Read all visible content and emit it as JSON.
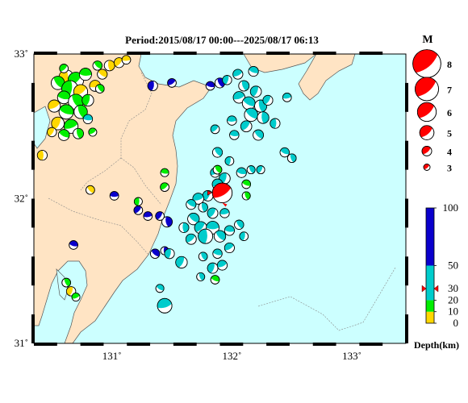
{
  "title": "Period:2015/08/17 00:00---2025/08/17 06:13",
  "map": {
    "lon_range": [
      130.35,
      133.45
    ],
    "lat_range": [
      31.0,
      33.0
    ],
    "lat_ticks": [
      {
        "v": 33,
        "label": "33˚"
      },
      {
        "v": 32,
        "label": "32˚"
      },
      {
        "v": 31,
        "label": "31˚"
      }
    ],
    "lon_ticks": [
      {
        "v": 131,
        "label": "131˚"
      },
      {
        "v": 132,
        "label": "132˚"
      },
      {
        "v": 133,
        "label": "133˚"
      }
    ],
    "colors": {
      "sea": "#ccffff",
      "land": "#ffe4c4",
      "frame": "#000000",
      "highlight": "#ff0000"
    }
  },
  "magnitude_legend": {
    "title": "M",
    "items": [
      {
        "m": 8,
        "label": "8"
      },
      {
        "m": 7,
        "label": "7"
      },
      {
        "m": 6,
        "label": "6"
      },
      {
        "m": 5,
        "label": "5"
      },
      {
        "m": 4,
        "label": "4"
      },
      {
        "m": 3,
        "label": "3"
      }
    ]
  },
  "depth_legend": {
    "title": "Depth(km)",
    "bands": [
      {
        "from": 0,
        "to": 10,
        "color": "#ffd700"
      },
      {
        "from": 10,
        "to": 20,
        "color": "#00ee00"
      },
      {
        "from": 20,
        "to": 50,
        "color": "#00cccc"
      },
      {
        "from": 50,
        "to": 100,
        "color": "#0a00cc"
      }
    ],
    "ticks": [
      {
        "v": 100,
        "label": "100"
      },
      {
        "v": 50,
        "label": "50"
      },
      {
        "v": 30,
        "label": "30"
      },
      {
        "v": 20,
        "label": "20"
      },
      {
        "v": 10,
        "label": "10"
      },
      {
        "v": 0,
        "label": "0"
      }
    ],
    "marker_depth": 30
  },
  "highlight_event": {
    "lon": 131.92,
    "lat": 32.04,
    "depth": 30,
    "m": 5.5
  },
  "events": [
    {
      "lon": 130.62,
      "lat": 32.84,
      "d": 8,
      "m": 4.6
    },
    {
      "lon": 130.7,
      "lat": 32.82,
      "d": 12,
      "m": 4.8
    },
    {
      "lon": 130.78,
      "lat": 32.86,
      "d": 10,
      "m": 4.2
    },
    {
      "lon": 130.55,
      "lat": 32.8,
      "d": 15,
      "m": 4.4
    },
    {
      "lon": 130.65,
      "lat": 32.76,
      "d": 12,
      "m": 4.9
    },
    {
      "lon": 130.74,
      "lat": 32.74,
      "d": 9,
      "m": 4.5
    },
    {
      "lon": 130.6,
      "lat": 32.7,
      "d": 14,
      "m": 4.3
    },
    {
      "lon": 130.7,
      "lat": 32.67,
      "d": 11,
      "m": 4.7
    },
    {
      "lon": 130.8,
      "lat": 32.68,
      "d": 13,
      "m": 4.1
    },
    {
      "lon": 130.52,
      "lat": 32.64,
      "d": 8,
      "m": 4.2
    },
    {
      "lon": 130.62,
      "lat": 32.6,
      "d": 16,
      "m": 4.6
    },
    {
      "lon": 130.74,
      "lat": 32.6,
      "d": 12,
      "m": 4.4
    },
    {
      "lon": 130.55,
      "lat": 32.52,
      "d": 7,
      "m": 4.3
    },
    {
      "lon": 130.66,
      "lat": 32.5,
      "d": 10,
      "m": 4.5
    },
    {
      "lon": 130.6,
      "lat": 32.44,
      "d": 15,
      "m": 4.0
    },
    {
      "lon": 130.72,
      "lat": 32.45,
      "d": 12,
      "m": 3.9
    },
    {
      "lon": 130.5,
      "lat": 32.46,
      "d": 6,
      "m": 3.7
    },
    {
      "lon": 130.86,
      "lat": 32.78,
      "d": 5,
      "m": 4.0
    },
    {
      "lon": 130.92,
      "lat": 32.86,
      "d": 7,
      "m": 3.8
    },
    {
      "lon": 130.98,
      "lat": 32.92,
      "d": 6,
      "m": 3.9
    },
    {
      "lon": 131.06,
      "lat": 32.94,
      "d": 8,
      "m": 3.8
    },
    {
      "lon": 131.12,
      "lat": 32.96,
      "d": 5,
      "m": 3.6
    },
    {
      "lon": 130.88,
      "lat": 32.92,
      "d": 11,
      "m": 3.7
    },
    {
      "lon": 130.42,
      "lat": 32.3,
      "d": 8,
      "m": 3.8
    },
    {
      "lon": 130.6,
      "lat": 32.9,
      "d": 13,
      "m": 3.6
    },
    {
      "lon": 130.8,
      "lat": 32.55,
      "d": 20,
      "m": 3.7
    },
    {
      "lon": 130.9,
      "lat": 32.76,
      "d": 13,
      "m": 3.6
    },
    {
      "lon": 131.34,
      "lat": 32.78,
      "d": 80,
      "m": 3.8
    },
    {
      "lon": 131.5,
      "lat": 32.8,
      "d": 90,
      "m": 3.6
    },
    {
      "lon": 131.82,
      "lat": 32.78,
      "d": 95,
      "m": 3.6
    },
    {
      "lon": 131.9,
      "lat": 32.8,
      "d": 70,
      "m": 3.8
    },
    {
      "lon": 131.96,
      "lat": 32.82,
      "d": 45,
      "m": 3.7
    },
    {
      "lon": 132.05,
      "lat": 32.86,
      "d": 40,
      "m": 3.8
    },
    {
      "lon": 132.18,
      "lat": 32.88,
      "d": 42,
      "m": 3.8
    },
    {
      "lon": 132.1,
      "lat": 32.78,
      "d": 38,
      "m": 3.9
    },
    {
      "lon": 132.2,
      "lat": 32.74,
      "d": 46,
      "m": 4.0
    },
    {
      "lon": 132.06,
      "lat": 32.7,
      "d": 44,
      "m": 4.1
    },
    {
      "lon": 132.14,
      "lat": 32.66,
      "d": 42,
      "m": 4.3
    },
    {
      "lon": 132.24,
      "lat": 32.64,
      "d": 40,
      "m": 4.2
    },
    {
      "lon": 132.3,
      "lat": 32.68,
      "d": 45,
      "m": 3.8
    },
    {
      "lon": 132.46,
      "lat": 32.7,
      "d": 40,
      "m": 3.6
    },
    {
      "lon": 132.16,
      "lat": 32.58,
      "d": 35,
      "m": 4.4
    },
    {
      "lon": 132.26,
      "lat": 32.56,
      "d": 30,
      "m": 4.1
    },
    {
      "lon": 132.12,
      "lat": 32.5,
      "d": 28,
      "m": 4.0
    },
    {
      "lon": 132.0,
      "lat": 32.54,
      "d": 42,
      "m": 3.7
    },
    {
      "lon": 132.22,
      "lat": 32.44,
      "d": 30,
      "m": 3.9
    },
    {
      "lon": 132.36,
      "lat": 32.52,
      "d": 32,
      "m": 3.8
    },
    {
      "lon": 131.86,
      "lat": 32.48,
      "d": 40,
      "m": 3.6
    },
    {
      "lon": 132.02,
      "lat": 32.44,
      "d": 22,
      "m": 3.7
    },
    {
      "lon": 131.88,
      "lat": 32.32,
      "d": 28,
      "m": 3.8
    },
    {
      "lon": 131.98,
      "lat": 32.26,
      "d": 35,
      "m": 3.6
    },
    {
      "lon": 131.86,
      "lat": 32.18,
      "d": 30,
      "m": 3.7
    },
    {
      "lon": 132.08,
      "lat": 32.18,
      "d": 20,
      "m": 3.8
    },
    {
      "lon": 132.16,
      "lat": 32.2,
      "d": 28,
      "m": 3.5
    },
    {
      "lon": 131.94,
      "lat": 32.14,
      "d": 25,
      "m": 4.0
    },
    {
      "lon": 131.88,
      "lat": 32.1,
      "d": 32,
      "m": 3.9
    },
    {
      "lon": 132.12,
      "lat": 32.1,
      "d": 15,
      "m": 3.6
    },
    {
      "lon": 132.12,
      "lat": 32.02,
      "d": 18,
      "m": 3.5
    },
    {
      "lon": 131.8,
      "lat": 32.02,
      "d": 38,
      "m": 3.9
    },
    {
      "lon": 131.72,
      "lat": 32.0,
      "d": 35,
      "m": 4.0
    },
    {
      "lon": 131.66,
      "lat": 31.96,
      "d": 30,
      "m": 3.8
    },
    {
      "lon": 131.76,
      "lat": 31.94,
      "d": 28,
      "m": 3.7
    },
    {
      "lon": 131.84,
      "lat": 31.9,
      "d": 32,
      "m": 3.9
    },
    {
      "lon": 131.94,
      "lat": 31.9,
      "d": 25,
      "m": 3.7
    },
    {
      "lon": 131.68,
      "lat": 31.86,
      "d": 36,
      "m": 4.1
    },
    {
      "lon": 131.6,
      "lat": 31.8,
      "d": 40,
      "m": 3.8
    },
    {
      "lon": 131.74,
      "lat": 31.8,
      "d": 30,
      "m": 4.2
    },
    {
      "lon": 131.84,
      "lat": 31.8,
      "d": 28,
      "m": 4.3
    },
    {
      "lon": 131.9,
      "lat": 31.74,
      "d": 35,
      "m": 4.1
    },
    {
      "lon": 131.78,
      "lat": 31.74,
      "d": 25,
      "m": 4.6
    },
    {
      "lon": 131.66,
      "lat": 31.72,
      "d": 32,
      "m": 3.9
    },
    {
      "lon": 131.98,
      "lat": 31.78,
      "d": 33,
      "m": 3.8
    },
    {
      "lon": 132.06,
      "lat": 31.82,
      "d": 22,
      "m": 3.7
    },
    {
      "lon": 132.1,
      "lat": 31.74,
      "d": 30,
      "m": 3.6
    },
    {
      "lon": 131.98,
      "lat": 31.66,
      "d": 24,
      "m": 3.8
    },
    {
      "lon": 131.88,
      "lat": 31.62,
      "d": 28,
      "m": 3.7
    },
    {
      "lon": 131.76,
      "lat": 31.6,
      "d": 30,
      "m": 3.6
    },
    {
      "lon": 131.84,
      "lat": 31.52,
      "d": 30,
      "m": 3.9
    },
    {
      "lon": 131.92,
      "lat": 31.54,
      "d": 25,
      "m": 3.8
    },
    {
      "lon": 131.86,
      "lat": 31.44,
      "d": 18,
      "m": 3.6
    },
    {
      "lon": 131.74,
      "lat": 31.46,
      "d": 33,
      "m": 3.5
    },
    {
      "lon": 131.58,
      "lat": 31.56,
      "d": 36,
      "m": 4.1
    },
    {
      "lon": 131.44,
      "lat": 31.26,
      "d": 30,
      "m": 4.6
    },
    {
      "lon": 131.4,
      "lat": 31.38,
      "d": 38,
      "m": 3.5
    },
    {
      "lon": 131.46,
      "lat": 31.84,
      "d": 70,
      "m": 3.9
    },
    {
      "lon": 131.4,
      "lat": 31.88,
      "d": 60,
      "m": 3.6
    },
    {
      "lon": 131.3,
      "lat": 31.88,
      "d": 75,
      "m": 3.6
    },
    {
      "lon": 131.36,
      "lat": 31.62,
      "d": 65,
      "m": 3.7
    },
    {
      "lon": 131.44,
      "lat": 31.64,
      "d": 80,
      "m": 3.5
    },
    {
      "lon": 131.22,
      "lat": 31.92,
      "d": 85,
      "m": 3.6
    },
    {
      "lon": 131.02,
      "lat": 32.02,
      "d": 80,
      "m": 3.6
    },
    {
      "lon": 130.82,
      "lat": 32.06,
      "d": 8,
      "m": 3.6
    },
    {
      "lon": 131.22,
      "lat": 31.98,
      "d": 15,
      "m": 3.5
    },
    {
      "lon": 131.44,
      "lat": 32.08,
      "d": 16,
      "m": 3.6
    },
    {
      "lon": 131.44,
      "lat": 32.18,
      "d": 12,
      "m": 3.5
    },
    {
      "lon": 131.88,
      "lat": 32.2,
      "d": 18,
      "m": 3.6
    },
    {
      "lon": 131.48,
      "lat": 31.62,
      "d": 40,
      "m": 3.8
    },
    {
      "lon": 130.84,
      "lat": 32.46,
      "d": 14,
      "m": 3.5
    },
    {
      "lon": 130.68,
      "lat": 31.68,
      "d": 80,
      "m": 3.6
    },
    {
      "lon": 130.62,
      "lat": 31.42,
      "d": 10,
      "m": 3.6
    },
    {
      "lon": 130.66,
      "lat": 31.36,
      "d": 8,
      "m": 3.7
    },
    {
      "lon": 130.7,
      "lat": 31.32,
      "d": 12,
      "m": 3.5
    },
    {
      "lon": 132.44,
      "lat": 32.32,
      "d": 38,
      "m": 3.7
    },
    {
      "lon": 132.5,
      "lat": 32.28,
      "d": 44,
      "m": 3.6
    },
    {
      "lon": 132.24,
      "lat": 32.2,
      "d": 42,
      "m": 3.5
    }
  ]
}
